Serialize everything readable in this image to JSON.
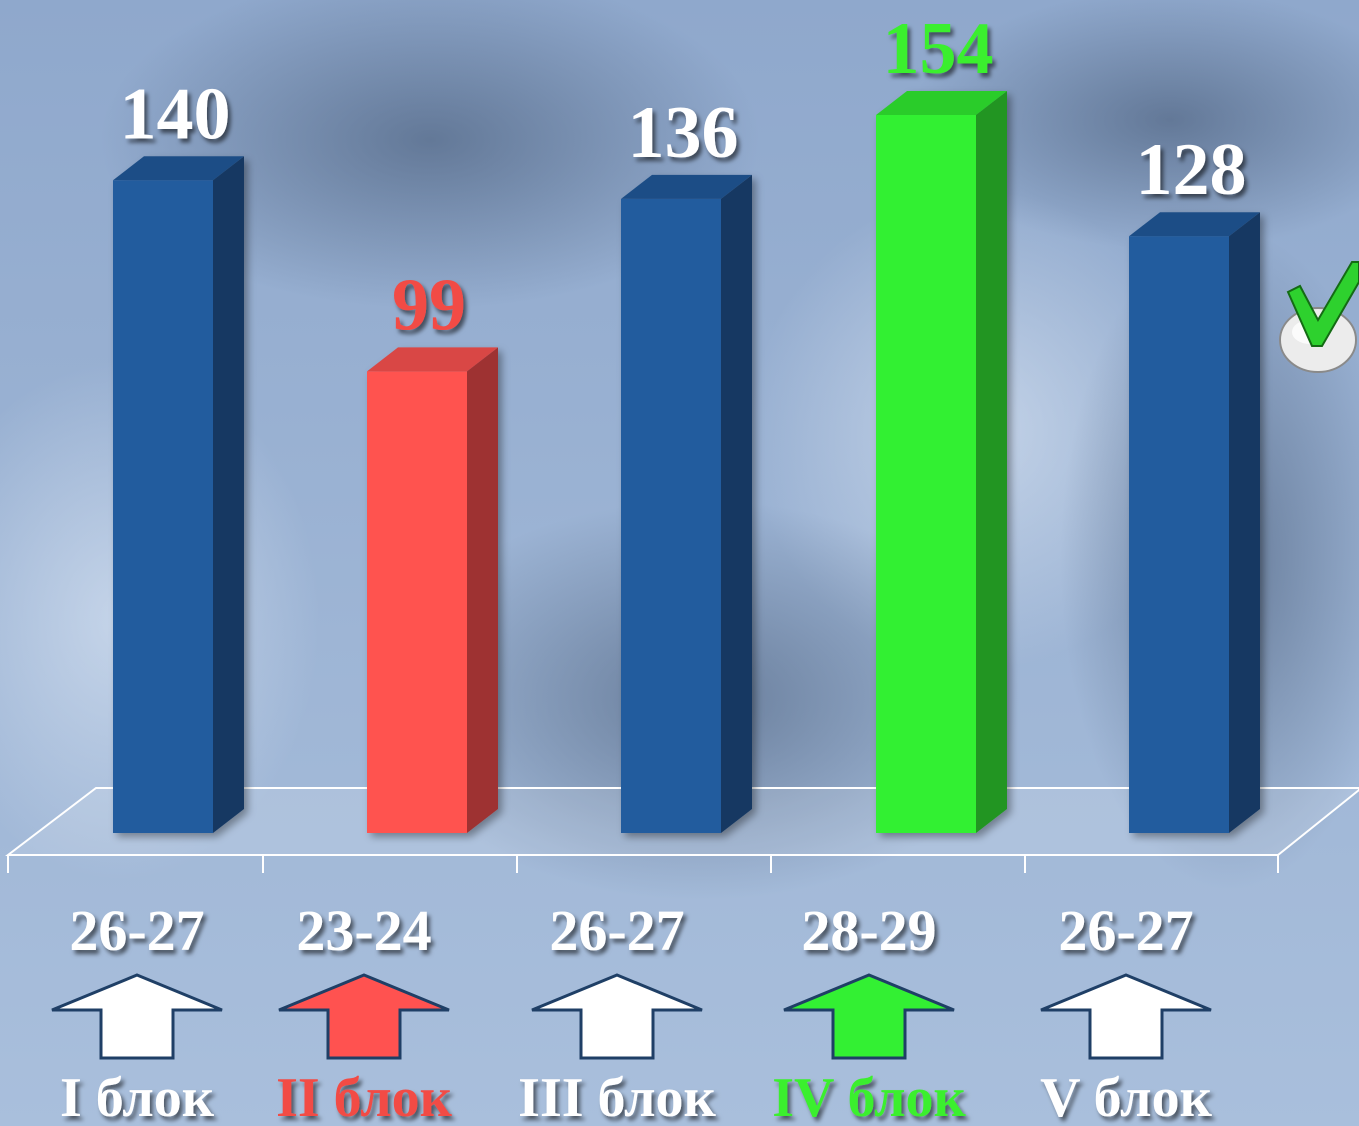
{
  "colors": {
    "background_top": "#8fa8cc",
    "background_bottom": "#a9bfdc",
    "bar_default": "#245c9e",
    "bar_min": "#ff5250",
    "bar_max": "#33f033",
    "label_default": "#ffffff",
    "label_min": "#f24b45",
    "label_max": "#3aef2e",
    "arrow_outline": "#1f3f66"
  },
  "decoration": {
    "check_icon": "green-checkmark-icon"
  },
  "chart_data": {
    "type": "bar",
    "style": "3d-column",
    "grid": false,
    "legend": "none",
    "categories": [
      "26-27",
      "23-24",
      "26-27",
      "28-29",
      "26-27"
    ],
    "values": [
      140,
      99,
      136,
      154,
      128
    ],
    "value_labels": [
      "140",
      "99",
      "136",
      "154",
      "128"
    ],
    "group_labels": [
      "I блок",
      "II блок",
      "III блок",
      "IV блок",
      "V блок"
    ],
    "highlight": [
      "default",
      "min",
      "default",
      "max",
      "default"
    ],
    "ylim": [
      0,
      154
    ]
  }
}
